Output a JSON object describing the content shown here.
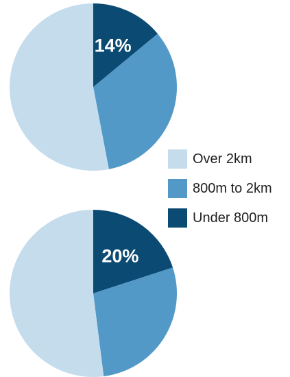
{
  "chart_data": [
    {
      "type": "pie",
      "title": "",
      "series": [
        {
          "name": "Under 800m",
          "value": 14,
          "color": "#0b4a73"
        },
        {
          "name": "800m to 2km",
          "value": 33,
          "color": "#5399c8"
        },
        {
          "name": "Over 2km",
          "value": 53,
          "color": "#c4dcec"
        }
      ],
      "data_labels": {
        "Under 800m": "14%"
      }
    },
    {
      "type": "pie",
      "title": "",
      "series": [
        {
          "name": "Under 800m",
          "value": 20,
          "color": "#0b4a73"
        },
        {
          "name": "800m to 2km",
          "value": 28,
          "color": "#5399c8"
        },
        {
          "name": "Over 2km",
          "value": 52,
          "color": "#c4dcec"
        }
      ],
      "data_labels": {
        "Under 800m": "20%"
      }
    }
  ],
  "legend": {
    "placement": "right",
    "items": [
      {
        "label": "Over 2km",
        "color": "#c4dcec"
      },
      {
        "label": "800m to 2km",
        "color": "#5399c8"
      },
      {
        "label": "Under 800m",
        "color": "#0b4a73"
      }
    ]
  }
}
